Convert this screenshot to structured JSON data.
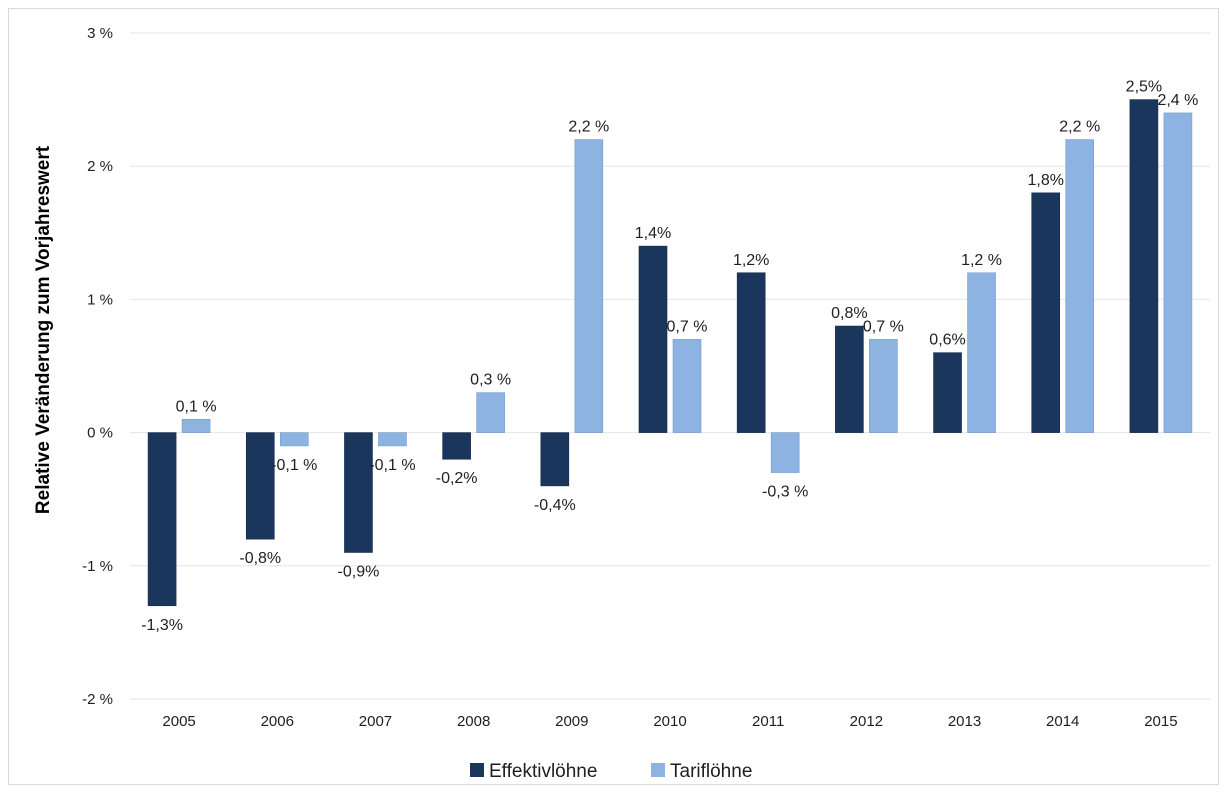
{
  "chart_data": {
    "type": "bar",
    "title": "",
    "xlabel": "",
    "ylabel": "Relative Veränderung zum Vorjahreswert",
    "ylim": [
      -2,
      3
    ],
    "yticks": [
      3,
      2,
      1,
      0,
      -1,
      -2
    ],
    "ytick_labels": [
      "3 %",
      "2 %",
      "1 %",
      "0 %",
      "-1 %",
      "-2 %"
    ],
    "categories": [
      "2005",
      "2006",
      "2007",
      "2008",
      "2009",
      "2010",
      "2011",
      "2012",
      "2013",
      "2014",
      "2015"
    ],
    "grid": true,
    "legend_position": "bottom",
    "colors": {
      "Effektivlöhne": "#1b365d",
      "Tariflöhne": "#8db3e2",
      "grid": "#e6e6e6"
    },
    "series": [
      {
        "name": "Effektivlöhne",
        "values": [
          -1.3,
          -0.8,
          -0.9,
          -0.2,
          -0.4,
          1.4,
          1.2,
          0.8,
          0.6,
          1.8,
          2.5
        ],
        "labels": [
          "-1,3%",
          "-0,8%",
          "-0,9%",
          "-0,2%",
          "-0,4%",
          "1,4%",
          "1,2%",
          "0,8%",
          "0,6%",
          "1,8%",
          "2,5%"
        ]
      },
      {
        "name": "Tariflöhne",
        "values": [
          0.1,
          -0.1,
          -0.1,
          0.3,
          2.2,
          0.7,
          -0.3,
          0.7,
          1.2,
          2.2,
          2.4
        ],
        "labels": [
          "0,1 %",
          "-0,1 %",
          "-0,1 %",
          "0,3 %",
          "2,2 %",
          "0,7 %",
          "-0,3 %",
          "0,7 %",
          "1,2 %",
          "2,2 %",
          "2,4 %"
        ]
      }
    ]
  }
}
